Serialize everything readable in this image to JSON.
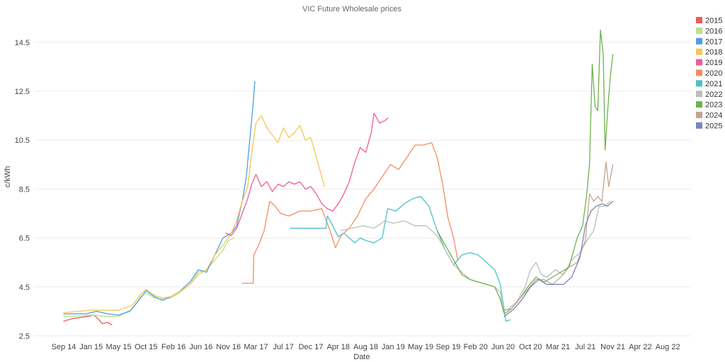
{
  "chart_data": {
    "type": "line",
    "title": "VIC Future Wholesale prices",
    "xlabel": "Date",
    "ylabel": "c/kWh",
    "x_ticks": [
      "Sep 14",
      "Jan 15",
      "May 15",
      "Oct 15",
      "Feb 16",
      "Jun 16",
      "Nov 16",
      "Mar 17",
      "Jul 17",
      "Dec 17",
      "Apr 18",
      "Aug 18",
      "Jan 19",
      "May 19",
      "Sep 19",
      "Feb 20",
      "Jun 20",
      "Oct 20",
      "Mar 21",
      "Jul 21",
      "Nov 21",
      "Apr 22",
      "Aug 22"
    ],
    "y_ticks": [
      "2.5",
      "4.5",
      "6.5",
      "8.5",
      "10.5",
      "12.5",
      "14.5"
    ],
    "ylim": [
      2.5,
      15.0
    ],
    "grid": true,
    "legend_position": "right",
    "series": [
      {
        "name": "2015",
        "color": "#f05a5a",
        "points": [
          [
            0.0,
            3.1
          ],
          [
            0.3,
            3.2
          ],
          [
            0.6,
            3.25
          ],
          [
            0.9,
            3.3
          ],
          [
            1.1,
            3.35
          ],
          [
            1.25,
            3.2
          ],
          [
            1.4,
            3.0
          ],
          [
            1.6,
            3.05
          ],
          [
            1.75,
            2.95
          ]
        ]
      },
      {
        "name": "2016",
        "color": "#b8e08c",
        "points": [
          [
            0.0,
            3.3
          ],
          [
            0.5,
            3.3
          ],
          [
            1.0,
            3.35
          ],
          [
            1.5,
            3.3
          ],
          [
            2.0,
            3.3
          ],
          [
            2.5,
            3.6
          ],
          [
            2.8,
            4.1
          ],
          [
            3.0,
            4.25
          ],
          [
            3.3,
            4.05
          ],
          [
            3.6,
            4.0
          ],
          [
            3.9,
            4.05
          ],
          [
            4.2,
            4.25
          ],
          [
            4.6,
            4.6
          ],
          [
            4.9,
            5.1
          ],
          [
            5.2,
            5.2
          ],
          [
            5.5,
            5.6
          ],
          [
            5.8,
            6.0
          ],
          [
            6.0,
            6.4
          ],
          [
            6.2,
            6.5
          ]
        ]
      },
      {
        "name": "2017",
        "color": "#4f9ee8",
        "points": [
          [
            0.0,
            3.4
          ],
          [
            0.4,
            3.4
          ],
          [
            0.8,
            3.4
          ],
          [
            1.2,
            3.5
          ],
          [
            1.6,
            3.4
          ],
          [
            2.0,
            3.35
          ],
          [
            2.4,
            3.5
          ],
          [
            2.7,
            3.9
          ],
          [
            3.0,
            4.35
          ],
          [
            3.3,
            4.1
          ],
          [
            3.6,
            3.95
          ],
          [
            3.9,
            4.1
          ],
          [
            4.2,
            4.3
          ],
          [
            4.6,
            4.7
          ],
          [
            4.9,
            5.2
          ],
          [
            5.2,
            5.1
          ],
          [
            5.5,
            5.8
          ],
          [
            5.8,
            6.5
          ],
          [
            6.1,
            6.7
          ],
          [
            6.3,
            7.0
          ],
          [
            6.5,
            8.0
          ],
          [
            6.65,
            9.0
          ],
          [
            6.8,
            10.8
          ],
          [
            6.9,
            12.0
          ],
          [
            6.96,
            12.9
          ]
        ]
      },
      {
        "name": "2018",
        "color": "#f7c653",
        "points": [
          [
            0.0,
            3.45
          ],
          [
            0.5,
            3.5
          ],
          [
            1.0,
            3.55
          ],
          [
            1.5,
            3.55
          ],
          [
            2.0,
            3.55
          ],
          [
            2.5,
            3.75
          ],
          [
            2.8,
            4.2
          ],
          [
            3.0,
            4.4
          ],
          [
            3.3,
            4.15
          ],
          [
            3.6,
            4.05
          ],
          [
            3.9,
            4.1
          ],
          [
            4.2,
            4.3
          ],
          [
            4.6,
            4.6
          ],
          [
            4.9,
            5.0
          ],
          [
            5.2,
            5.2
          ],
          [
            5.5,
            5.8
          ],
          [
            5.8,
            6.2
          ],
          [
            6.1,
            6.7
          ],
          [
            6.3,
            7.2
          ],
          [
            6.5,
            8.0
          ],
          [
            6.7,
            8.6
          ],
          [
            6.85,
            10.0
          ],
          [
            7.0,
            11.2
          ],
          [
            7.2,
            11.5
          ],
          [
            7.4,
            11.0
          ],
          [
            7.6,
            10.7
          ],
          [
            7.8,
            10.4
          ],
          [
            8.0,
            11.0
          ],
          [
            8.2,
            10.6
          ],
          [
            8.4,
            10.8
          ],
          [
            8.6,
            11.1
          ],
          [
            8.8,
            10.5
          ],
          [
            9.0,
            10.6
          ],
          [
            9.2,
            9.8
          ],
          [
            9.4,
            9.0
          ],
          [
            9.5,
            8.6
          ]
        ]
      },
      {
        "name": "2019",
        "color": "#ef5b9c",
        "points": [
          [
            5.9,
            6.7
          ],
          [
            6.1,
            6.6
          ],
          [
            6.3,
            6.9
          ],
          [
            6.5,
            7.5
          ],
          [
            6.7,
            8.1
          ],
          [
            6.85,
            8.7
          ],
          [
            7.0,
            9.1
          ],
          [
            7.2,
            8.6
          ],
          [
            7.4,
            8.8
          ],
          [
            7.6,
            8.4
          ],
          [
            7.8,
            8.7
          ],
          [
            8.0,
            8.6
          ],
          [
            8.2,
            8.8
          ],
          [
            8.4,
            8.7
          ],
          [
            8.6,
            8.8
          ],
          [
            8.8,
            8.5
          ],
          [
            9.0,
            8.6
          ],
          [
            9.2,
            8.3
          ],
          [
            9.4,
            7.9
          ],
          [
            9.6,
            7.7
          ],
          [
            9.8,
            7.6
          ],
          [
            10.0,
            7.9
          ],
          [
            10.2,
            8.3
          ],
          [
            10.4,
            8.8
          ],
          [
            10.6,
            9.6
          ],
          [
            10.8,
            10.2
          ],
          [
            11.0,
            10.0
          ],
          [
            11.2,
            10.8
          ],
          [
            11.3,
            11.6
          ],
          [
            11.5,
            11.2
          ],
          [
            11.7,
            11.3
          ],
          [
            11.8,
            11.4
          ]
        ]
      },
      {
        "name": "2020",
        "color": "#f58c63",
        "points": [
          [
            6.5,
            4.65
          ],
          [
            6.9,
            4.65
          ],
          [
            6.92,
            5.8
          ],
          [
            7.1,
            6.2
          ],
          [
            7.3,
            6.8
          ],
          [
            7.5,
            8.0
          ],
          [
            7.7,
            7.8
          ],
          [
            7.9,
            7.5
          ],
          [
            8.2,
            7.4
          ],
          [
            8.6,
            7.6
          ],
          [
            9.0,
            7.6
          ],
          [
            9.4,
            7.7
          ],
          [
            9.7,
            6.8
          ],
          [
            9.9,
            6.1
          ],
          [
            10.1,
            6.6
          ],
          [
            10.4,
            6.9
          ],
          [
            10.7,
            7.4
          ],
          [
            11.0,
            8.1
          ],
          [
            11.3,
            8.5
          ],
          [
            11.6,
            9.0
          ],
          [
            11.9,
            9.5
          ],
          [
            12.2,
            9.3
          ],
          [
            12.5,
            9.8
          ],
          [
            12.8,
            10.3
          ],
          [
            13.1,
            10.3
          ],
          [
            13.4,
            10.4
          ],
          [
            13.6,
            9.8
          ],
          [
            13.8,
            8.7
          ],
          [
            14.0,
            7.3
          ],
          [
            14.2,
            6.5
          ],
          [
            14.35,
            5.6
          ]
        ]
      },
      {
        "name": "2021",
        "color": "#4cc2c8",
        "points": [
          [
            8.25,
            6.9
          ],
          [
            8.7,
            6.9
          ],
          [
            9.2,
            6.9
          ],
          [
            9.55,
            6.9
          ],
          [
            9.6,
            7.4
          ],
          [
            9.8,
            7.0
          ],
          [
            10.0,
            6.55
          ],
          [
            10.2,
            6.7
          ],
          [
            10.4,
            6.5
          ],
          [
            10.6,
            6.3
          ],
          [
            10.8,
            6.5
          ],
          [
            11.0,
            6.4
          ],
          [
            11.3,
            6.3
          ],
          [
            11.6,
            6.5
          ],
          [
            11.8,
            7.7
          ],
          [
            12.1,
            7.6
          ],
          [
            12.4,
            7.9
          ],
          [
            12.7,
            8.1
          ],
          [
            13.0,
            8.2
          ],
          [
            13.3,
            7.8
          ],
          [
            13.6,
            6.8
          ],
          [
            13.9,
            6.0
          ],
          [
            14.2,
            5.4
          ],
          [
            14.5,
            5.8
          ],
          [
            14.8,
            5.9
          ],
          [
            15.1,
            5.8
          ],
          [
            15.4,
            5.5
          ],
          [
            15.7,
            5.2
          ],
          [
            15.9,
            4.6
          ],
          [
            16.05,
            3.5
          ],
          [
            16.1,
            3.1
          ],
          [
            16.25,
            3.15
          ]
        ]
      },
      {
        "name": "2022",
        "color": "#bdbdbd",
        "points": [
          [
            10.1,
            6.8
          ],
          [
            10.5,
            6.9
          ],
          [
            10.9,
            7.0
          ],
          [
            11.3,
            6.9
          ],
          [
            11.7,
            7.2
          ],
          [
            12.0,
            7.1
          ],
          [
            12.4,
            7.2
          ],
          [
            12.8,
            7.0
          ],
          [
            13.2,
            7.0
          ],
          [
            13.6,
            6.6
          ],
          [
            13.9,
            6.0
          ],
          [
            14.2,
            5.4
          ],
          [
            14.5,
            5.1
          ],
          [
            14.8,
            4.8
          ],
          [
            15.1,
            4.7
          ],
          [
            15.4,
            4.6
          ],
          [
            15.7,
            4.5
          ],
          [
            15.9,
            4.3
          ],
          [
            16.0,
            3.5
          ],
          [
            16.2,
            3.6
          ],
          [
            16.5,
            3.9
          ],
          [
            16.8,
            4.5
          ],
          [
            17.0,
            5.2
          ],
          [
            17.2,
            5.5
          ],
          [
            17.4,
            5.0
          ],
          [
            17.6,
            4.9
          ],
          [
            17.9,
            5.2
          ],
          [
            18.2,
            5.0
          ],
          [
            18.5,
            5.6
          ],
          [
            18.8,
            5.9
          ],
          [
            19.0,
            6.3
          ],
          [
            19.3,
            6.8
          ],
          [
            19.5,
            7.8
          ],
          [
            19.7,
            7.8
          ],
          [
            19.9,
            8.0
          ]
        ]
      },
      {
        "name": "2023",
        "color": "#6db34c",
        "points": [
          [
            13.6,
            6.8
          ],
          [
            13.9,
            6.2
          ],
          [
            14.2,
            5.6
          ],
          [
            14.5,
            5.0
          ],
          [
            14.8,
            4.8
          ],
          [
            15.1,
            4.7
          ],
          [
            15.4,
            4.6
          ],
          [
            15.7,
            4.5
          ],
          [
            15.9,
            4.0
          ],
          [
            16.05,
            3.4
          ],
          [
            16.3,
            3.6
          ],
          [
            16.6,
            4.0
          ],
          [
            16.9,
            4.5
          ],
          [
            17.2,
            4.9
          ],
          [
            17.5,
            4.7
          ],
          [
            17.8,
            4.9
          ],
          [
            18.1,
            5.1
          ],
          [
            18.4,
            5.3
          ],
          [
            18.7,
            6.5
          ],
          [
            18.9,
            7.0
          ],
          [
            19.05,
            8.3
          ],
          [
            19.15,
            9.5
          ],
          [
            19.25,
            13.6
          ],
          [
            19.35,
            11.9
          ],
          [
            19.45,
            11.7
          ],
          [
            19.55,
            15.0
          ],
          [
            19.65,
            14.0
          ],
          [
            19.72,
            10.1
          ],
          [
            19.8,
            11.5
          ],
          [
            19.9,
            13.0
          ],
          [
            20.0,
            14.0
          ]
        ]
      },
      {
        "name": "2024",
        "color": "#c7a392",
        "points": [
          [
            16.0,
            3.55
          ],
          [
            16.3,
            3.6
          ],
          [
            16.6,
            4.0
          ],
          [
            16.9,
            4.4
          ],
          [
            17.2,
            4.8
          ],
          [
            17.5,
            4.8
          ],
          [
            17.8,
            4.6
          ],
          [
            18.1,
            4.9
          ],
          [
            18.4,
            5.3
          ],
          [
            18.7,
            5.5
          ],
          [
            19.0,
            6.4
          ],
          [
            19.15,
            8.3
          ],
          [
            19.3,
            8.0
          ],
          [
            19.45,
            8.2
          ],
          [
            19.6,
            8.0
          ],
          [
            19.75,
            9.6
          ],
          [
            19.85,
            8.6
          ],
          [
            19.95,
            9.2
          ],
          [
            20.0,
            9.5
          ]
        ]
      },
      {
        "name": "2025",
        "color": "#7b86b8",
        "points": [
          [
            16.05,
            3.3
          ],
          [
            16.4,
            3.6
          ],
          [
            16.7,
            4.0
          ],
          [
            17.0,
            4.5
          ],
          [
            17.3,
            4.8
          ],
          [
            17.6,
            4.6
          ],
          [
            17.9,
            4.6
          ],
          [
            18.2,
            4.6
          ],
          [
            18.5,
            4.9
          ],
          [
            18.8,
            5.7
          ],
          [
            19.0,
            7.0
          ],
          [
            19.2,
            7.6
          ],
          [
            19.4,
            7.8
          ],
          [
            19.6,
            7.9
          ],
          [
            19.8,
            7.8
          ],
          [
            20.0,
            8.0
          ]
        ]
      }
    ]
  }
}
